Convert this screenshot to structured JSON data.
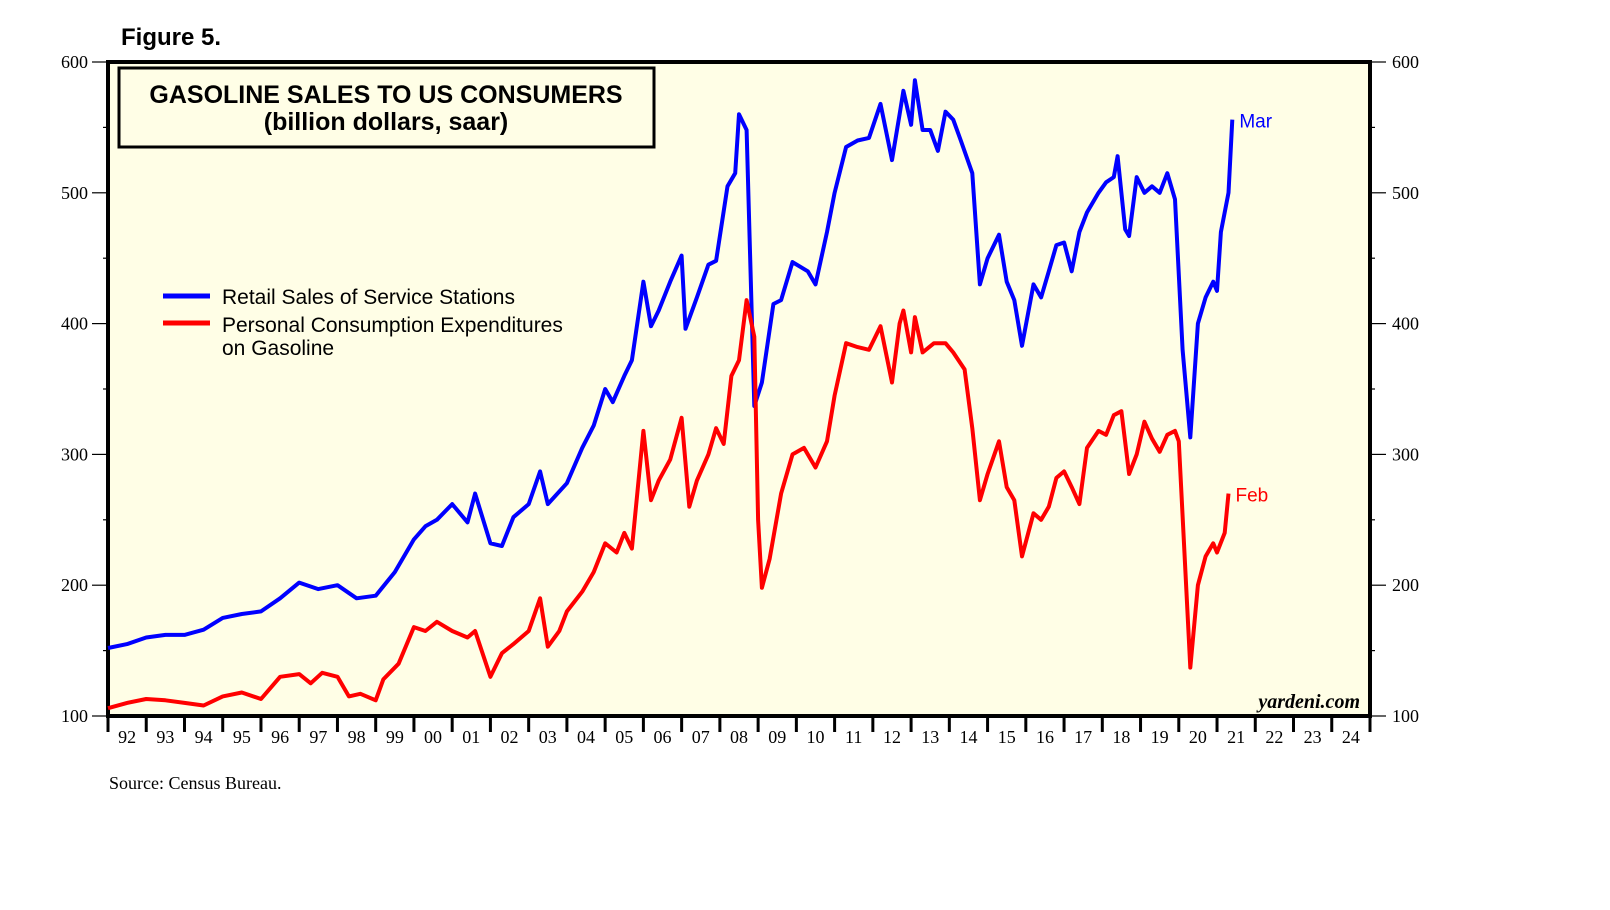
{
  "figure_label": "Figure 5.",
  "source": "Source: Census Bureau.",
  "watermark": "yardeni.com",
  "chart_data": {
    "type": "line",
    "title": "GASOLINE SALES TO US CONSUMERS",
    "subtitle": "(billion dollars, saar)",
    "xlabel": "",
    "ylabel": "",
    "ylim": [
      100,
      600
    ],
    "xlim": [
      1992,
      2025
    ],
    "yticks": [
      100,
      200,
      300,
      400,
      500,
      600
    ],
    "ytick_labels": [
      "100",
      "200",
      "300",
      "400",
      "500",
      "600"
    ],
    "xtick_labels": [
      "92",
      "93",
      "94",
      "95",
      "96",
      "97",
      "98",
      "99",
      "00",
      "01",
      "02",
      "03",
      "04",
      "05",
      "06",
      "07",
      "08",
      "09",
      "10",
      "11",
      "12",
      "13",
      "14",
      "15",
      "16",
      "17",
      "18",
      "19",
      "20",
      "21",
      "22",
      "23",
      "24"
    ],
    "grid": false,
    "legend_position": "left-middle",
    "background": "#fffee6",
    "series": [
      {
        "name": "Retail Sales of Service Stations",
        "color": "#0000ff",
        "end_label": "Mar",
        "points": [
          [
            1992.0,
            152
          ],
          [
            1992.5,
            155
          ],
          [
            1993,
            160
          ],
          [
            1993.5,
            162
          ],
          [
            1994,
            162
          ],
          [
            1994.5,
            166
          ],
          [
            1995,
            175
          ],
          [
            1995.5,
            178
          ],
          [
            1996,
            180
          ],
          [
            1996.5,
            190
          ],
          [
            1997,
            202
          ],
          [
            1997.5,
            197
          ],
          [
            1998,
            200
          ],
          [
            1998.5,
            190
          ],
          [
            1999,
            192
          ],
          [
            1999.5,
            210
          ],
          [
            2000,
            235
          ],
          [
            2000.3,
            245
          ],
          [
            2000.6,
            250
          ],
          [
            2001,
            262
          ],
          [
            2001.4,
            248
          ],
          [
            2001.6,
            270
          ],
          [
            2002,
            232
          ],
          [
            2002.3,
            230
          ],
          [
            2002.6,
            252
          ],
          [
            2003,
            262
          ],
          [
            2003.3,
            287
          ],
          [
            2003.5,
            262
          ],
          [
            2004,
            278
          ],
          [
            2004.4,
            305
          ],
          [
            2004.7,
            322
          ],
          [
            2005,
            350
          ],
          [
            2005.2,
            340
          ],
          [
            2005.5,
            360
          ],
          [
            2005.7,
            372
          ],
          [
            2006,
            432
          ],
          [
            2006.2,
            398
          ],
          [
            2006.4,
            410
          ],
          [
            2006.7,
            432
          ],
          [
            2007,
            452
          ],
          [
            2007.1,
            396
          ],
          [
            2007.4,
            420
          ],
          [
            2007.7,
            445
          ],
          [
            2007.9,
            448
          ],
          [
            2008.2,
            505
          ],
          [
            2008.4,
            515
          ],
          [
            2008.5,
            560
          ],
          [
            2008.7,
            548
          ],
          [
            2008.9,
            337
          ],
          [
            2009.1,
            355
          ],
          [
            2009.4,
            415
          ],
          [
            2009.6,
            418
          ],
          [
            2009.9,
            447
          ],
          [
            2010.3,
            440
          ],
          [
            2010.5,
            430
          ],
          [
            2010.8,
            470
          ],
          [
            2011,
            500
          ],
          [
            2011.3,
            535
          ],
          [
            2011.6,
            540
          ],
          [
            2011.9,
            542
          ],
          [
            2012.2,
            568
          ],
          [
            2012.5,
            525
          ],
          [
            2012.7,
            560
          ],
          [
            2012.8,
            578
          ],
          [
            2013,
            552
          ],
          [
            2013.1,
            586
          ],
          [
            2013.3,
            548
          ],
          [
            2013.5,
            548
          ],
          [
            2013.7,
            532
          ],
          [
            2013.9,
            562
          ],
          [
            2014.1,
            556
          ],
          [
            2014.3,
            540
          ],
          [
            2014.6,
            515
          ],
          [
            2014.8,
            430
          ],
          [
            2015,
            450
          ],
          [
            2015.3,
            468
          ],
          [
            2015.5,
            432
          ],
          [
            2015.7,
            418
          ],
          [
            2015.9,
            383
          ],
          [
            2016.2,
            430
          ],
          [
            2016.4,
            420
          ],
          [
            2016.6,
            440
          ],
          [
            2016.8,
            460
          ],
          [
            2017,
            462
          ],
          [
            2017.2,
            440
          ],
          [
            2017.4,
            470
          ],
          [
            2017.6,
            485
          ],
          [
            2017.9,
            500
          ],
          [
            2018.1,
            508
          ],
          [
            2018.3,
            512
          ],
          [
            2018.4,
            528
          ],
          [
            2018.6,
            472
          ],
          [
            2018.7,
            467
          ],
          [
            2018.9,
            512
          ],
          [
            2019.1,
            500
          ],
          [
            2019.3,
            505
          ],
          [
            2019.5,
            500
          ],
          [
            2019.7,
            515
          ],
          [
            2019.9,
            495
          ],
          [
            2020.1,
            380
          ],
          [
            2020.3,
            313
          ],
          [
            2020.5,
            400
          ],
          [
            2020.7,
            420
          ],
          [
            2020.9,
            432
          ],
          [
            2021.0,
            425
          ],
          [
            2021.1,
            470
          ],
          [
            2021.3,
            500
          ],
          [
            2021.4,
            556
          ]
        ]
      },
      {
        "name": "Personal Consumption Expenditures on Gasoline",
        "legend_lines": [
          "Personal Consumption Expenditures",
          "on Gasoline"
        ],
        "color": "#ff0000",
        "end_label": "Feb",
        "points": [
          [
            1992,
            106
          ],
          [
            1992.5,
            110
          ],
          [
            1993,
            113
          ],
          [
            1993.5,
            112
          ],
          [
            1994,
            110
          ],
          [
            1994.5,
            108
          ],
          [
            1995,
            115
          ],
          [
            1995.5,
            118
          ],
          [
            1996,
            113
          ],
          [
            1996.5,
            130
          ],
          [
            1997,
            132
          ],
          [
            1997.3,
            125
          ],
          [
            1997.6,
            133
          ],
          [
            1998,
            130
          ],
          [
            1998.3,
            115
          ],
          [
            1998.6,
            117
          ],
          [
            1999,
            112
          ],
          [
            1999.2,
            128
          ],
          [
            1999.6,
            140
          ],
          [
            2000,
            168
          ],
          [
            2000.3,
            165
          ],
          [
            2000.6,
            172
          ],
          [
            2001,
            165
          ],
          [
            2001.4,
            160
          ],
          [
            2001.6,
            165
          ],
          [
            2002,
            130
          ],
          [
            2002.3,
            148
          ],
          [
            2002.6,
            155
          ],
          [
            2003,
            165
          ],
          [
            2003.3,
            190
          ],
          [
            2003.5,
            153
          ],
          [
            2003.8,
            165
          ],
          [
            2004,
            180
          ],
          [
            2004.4,
            195
          ],
          [
            2004.7,
            210
          ],
          [
            2005,
            232
          ],
          [
            2005.3,
            225
          ],
          [
            2005.5,
            240
          ],
          [
            2005.7,
            228
          ],
          [
            2006,
            318
          ],
          [
            2006.2,
            265
          ],
          [
            2006.4,
            280
          ],
          [
            2006.7,
            296
          ],
          [
            2007,
            328
          ],
          [
            2007.2,
            260
          ],
          [
            2007.4,
            280
          ],
          [
            2007.7,
            300
          ],
          [
            2007.9,
            320
          ],
          [
            2008.1,
            308
          ],
          [
            2008.3,
            360
          ],
          [
            2008.5,
            372
          ],
          [
            2008.7,
            418
          ],
          [
            2008.9,
            390
          ],
          [
            2009.0,
            250
          ],
          [
            2009.1,
            198
          ],
          [
            2009.3,
            220
          ],
          [
            2009.6,
            270
          ],
          [
            2009.9,
            300
          ],
          [
            2010.2,
            305
          ],
          [
            2010.5,
            290
          ],
          [
            2010.8,
            310
          ],
          [
            2011,
            345
          ],
          [
            2011.3,
            385
          ],
          [
            2011.6,
            382
          ],
          [
            2011.9,
            380
          ],
          [
            2012.2,
            398
          ],
          [
            2012.5,
            355
          ],
          [
            2012.7,
            400
          ],
          [
            2012.8,
            410
          ],
          [
            2013,
            378
          ],
          [
            2013.1,
            405
          ],
          [
            2013.3,
            378
          ],
          [
            2013.6,
            385
          ],
          [
            2013.9,
            385
          ],
          [
            2014.1,
            378
          ],
          [
            2014.4,
            365
          ],
          [
            2014.6,
            320
          ],
          [
            2014.8,
            265
          ],
          [
            2015,
            285
          ],
          [
            2015.3,
            310
          ],
          [
            2015.5,
            275
          ],
          [
            2015.7,
            265
          ],
          [
            2015.9,
            222
          ],
          [
            2016.2,
            255
          ],
          [
            2016.4,
            250
          ],
          [
            2016.6,
            260
          ],
          [
            2016.8,
            282
          ],
          [
            2017,
            287
          ],
          [
            2017.2,
            275
          ],
          [
            2017.4,
            262
          ],
          [
            2017.6,
            305
          ],
          [
            2017.9,
            318
          ],
          [
            2018.1,
            315
          ],
          [
            2018.3,
            330
          ],
          [
            2018.5,
            333
          ],
          [
            2018.7,
            285
          ],
          [
            2018.9,
            300
          ],
          [
            2019.1,
            325
          ],
          [
            2019.3,
            312
          ],
          [
            2019.5,
            302
          ],
          [
            2019.7,
            315
          ],
          [
            2019.9,
            318
          ],
          [
            2020.0,
            310
          ],
          [
            2020.3,
            137
          ],
          [
            2020.5,
            200
          ],
          [
            2020.7,
            222
          ],
          [
            2020.9,
            232
          ],
          [
            2021.0,
            225
          ],
          [
            2021.2,
            240
          ],
          [
            2021.3,
            270
          ]
        ]
      }
    ]
  }
}
